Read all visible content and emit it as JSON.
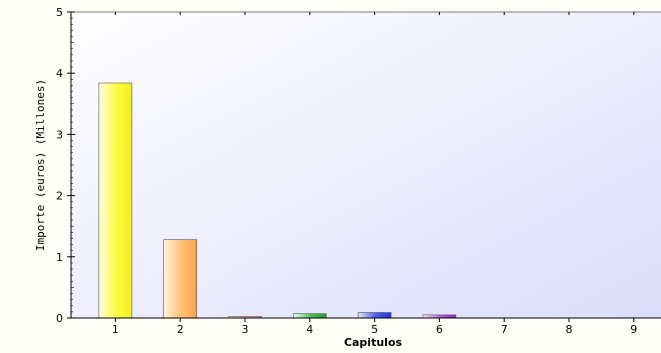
{
  "chart_data": {
    "type": "bar",
    "categories": [
      "1",
      "2",
      "3",
      "4",
      "5",
      "6",
      "7",
      "8",
      "9"
    ],
    "values": [
      3.84,
      1.28,
      0.01,
      0.07,
      0.09,
      0.05,
      0,
      0,
      0
    ],
    "bar_colors": [
      [
        "#fffde0",
        "#f2ee20",
        "#fffb40"
      ],
      [
        "#fff2e0",
        "#f7a552",
        "#ffc070"
      ],
      [
        "#fff0f4",
        "#d98aa8",
        "#e9b0c4"
      ],
      [
        "#eaffea",
        "#1f9a2e",
        "#46c055"
      ],
      [
        "#e4e8ff",
        "#2233d8",
        "#4b5cf0"
      ],
      [
        "#f7e8ff",
        "#8a28b8",
        "#b15adc"
      ],
      [
        "#ffffff",
        "#cccccc",
        "#dddddd"
      ],
      [
        "#ffffff",
        "#cccccc",
        "#dddddd"
      ],
      [
        "#ffffff",
        "#cccccc",
        "#dddddd"
      ]
    ],
    "xlabel": "Capitulos",
    "ylabel": "Importe (euros) (Millones)",
    "ylim": [
      0,
      5
    ],
    "yticks": [
      "0",
      "1",
      "2",
      "3",
      "4",
      "5"
    ],
    "grid": false,
    "background": {
      "from": "#ffffff",
      "to": "#dcdcfb"
    }
  }
}
